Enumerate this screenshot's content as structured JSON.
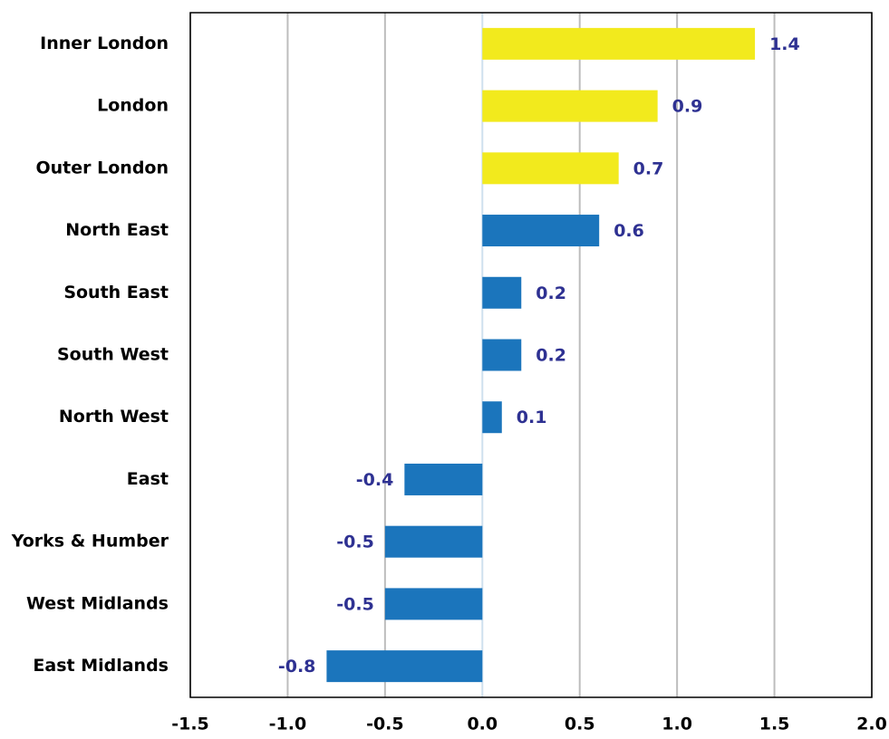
{
  "chart_data": {
    "type": "bar",
    "orientation": "horizontal",
    "categories": [
      "Inner London",
      "London",
      "Outer London",
      "North East",
      "South East",
      "South West",
      "North West",
      "East",
      "Yorks & Humber",
      "West Midlands",
      "East Midlands"
    ],
    "values": [
      1.4,
      0.9,
      0.7,
      0.6,
      0.2,
      0.2,
      0.1,
      -0.4,
      -0.5,
      -0.5,
      -0.8
    ],
    "colors": [
      "#f2ea1d",
      "#f2ea1d",
      "#f2ea1d",
      "#1b75bc",
      "#1b75bc",
      "#1b75bc",
      "#1b75bc",
      "#1b75bc",
      "#1b75bc",
      "#1b75bc",
      "#1b75bc"
    ],
    "label_color": "#2e3192",
    "xlim": [
      -1.5,
      2.0
    ],
    "xticks": [
      -1.5,
      {
        "value": -1.0,
        "label": "-1.0"
      },
      -0.5,
      {
        "value": 0.0,
        "label": "0.0"
      },
      0.5,
      {
        "value": 1.0,
        "label": "1.0"
      },
      1.5,
      {
        "value": 2.0,
        "label": "2.0"
      }
    ],
    "grid": true
  }
}
